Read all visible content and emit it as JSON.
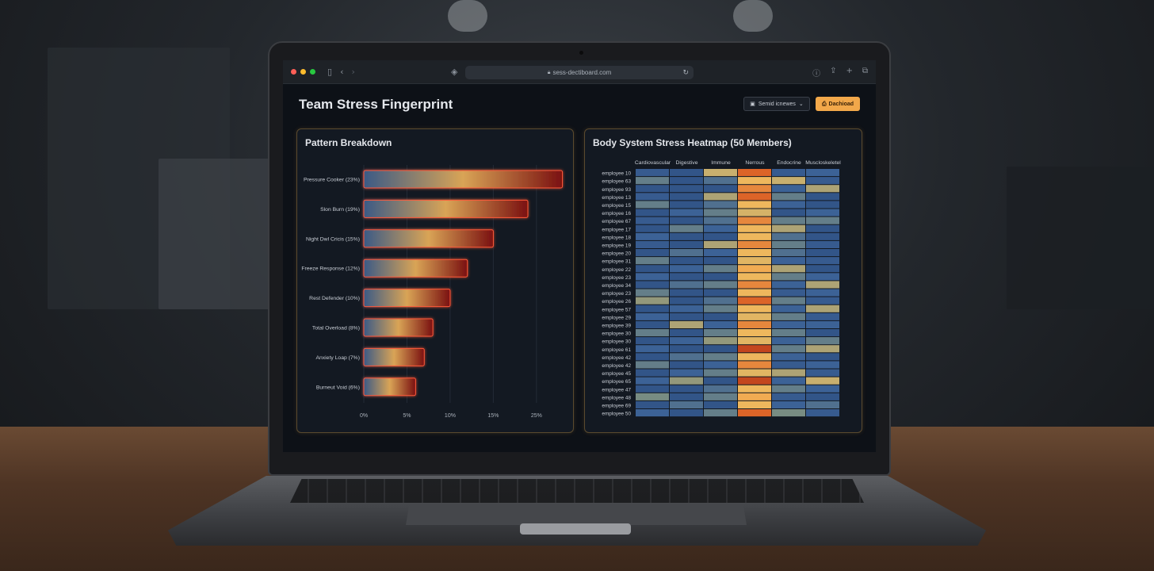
{
  "browser": {
    "url": "sess-dectiboard.com"
  },
  "header": {
    "title": "Team Stress Fingerprint",
    "select_label": "Semid icnewes",
    "button_label": "Dachioad"
  },
  "pattern_panel": {
    "title": "Pattern Breakdown"
  },
  "heatmap_panel": {
    "title": "Body System Stress Heatmap (50 Members)"
  },
  "chart_data": [
    {
      "type": "bar",
      "orientation": "horizontal",
      "categories": [
        "Pressure Cooker (23%)",
        "Slon Burn (19%)",
        "Night Dwl Cricis (15%)",
        "Freeze Response (12%)",
        "Rest Defender (10%)",
        "Total Overload (8%)",
        "Anxiety Loap (7%)",
        "Burneut Void (6%)"
      ],
      "values": [
        23,
        19,
        15,
        12,
        10,
        8,
        7,
        6
      ],
      "xticks": [
        "0%",
        "5%",
        "10%",
        "15%",
        "25%"
      ],
      "xlim": [
        0,
        23.5
      ]
    },
    {
      "type": "heatmap",
      "columns": [
        "Cardiovascular",
        "Digestive",
        "Immune",
        "Nerrous",
        "Endocrine",
        "Muscloskeletel"
      ],
      "rows": [
        "employee 10",
        "employee 63",
        "employee 93",
        "employee 13",
        "employee 15",
        "employee 16",
        "employee 67",
        "employee 17",
        "employee 18",
        "employee 19",
        "employee 20",
        "employee 31",
        "employee 22",
        "employee 23",
        "employee 34",
        "employee 23",
        "employee 26",
        "employee 57",
        "employee 29",
        "employee 39",
        "employee 30",
        "employee 30",
        "employee 61",
        "employee 42",
        "employee 42",
        "employee 45",
        "employee 65",
        "employee 47",
        "employee 48",
        "employee 69",
        "employee 50"
      ],
      "values": [
        [
          0.25,
          0.2,
          0.6,
          0.9,
          0.25,
          0.3
        ],
        [
          0.4,
          0.2,
          0.35,
          0.75,
          0.6,
          0.25
        ],
        [
          0.2,
          0.2,
          0.2,
          0.85,
          0.3,
          0.55
        ],
        [
          0.25,
          0.2,
          0.55,
          0.9,
          0.4,
          0.2
        ],
        [
          0.4,
          0.2,
          0.35,
          0.75,
          0.3,
          0.2
        ],
        [
          0.2,
          0.3,
          0.4,
          0.65,
          0.2,
          0.3
        ],
        [
          0.25,
          0.2,
          0.35,
          0.85,
          0.4,
          0.4
        ],
        [
          0.2,
          0.4,
          0.3,
          0.75,
          0.55,
          0.2
        ],
        [
          0.3,
          0.2,
          0.2,
          0.75,
          0.35,
          0.2
        ],
        [
          0.25,
          0.2,
          0.55,
          0.85,
          0.4,
          0.25
        ],
        [
          0.2,
          0.35,
          0.3,
          0.75,
          0.35,
          0.2
        ],
        [
          0.4,
          0.2,
          0.2,
          0.7,
          0.3,
          0.25
        ],
        [
          0.2,
          0.3,
          0.4,
          0.8,
          0.55,
          0.2
        ],
        [
          0.3,
          0.2,
          0.2,
          0.75,
          0.4,
          0.3
        ],
        [
          0.2,
          0.35,
          0.4,
          0.85,
          0.3,
          0.55
        ],
        [
          0.4,
          0.2,
          0.2,
          0.75,
          0.25,
          0.3
        ],
        [
          0.5,
          0.2,
          0.35,
          0.9,
          0.4,
          0.25
        ],
        [
          0.2,
          0.3,
          0.4,
          0.75,
          0.3,
          0.55
        ],
        [
          0.3,
          0.2,
          0.2,
          0.7,
          0.4,
          0.25
        ],
        [
          0.2,
          0.55,
          0.3,
          0.85,
          0.3,
          0.3
        ],
        [
          0.4,
          0.2,
          0.4,
          0.75,
          0.4,
          0.2
        ],
        [
          0.2,
          0.3,
          0.5,
          0.7,
          0.3,
          0.4
        ],
        [
          0.3,
          0.2,
          0.2,
          0.95,
          0.4,
          0.55
        ],
        [
          0.2,
          0.35,
          0.4,
          0.75,
          0.3,
          0.2
        ],
        [
          0.4,
          0.2,
          0.3,
          0.85,
          0.25,
          0.3
        ],
        [
          0.2,
          0.3,
          0.4,
          0.7,
          0.55,
          0.25
        ],
        [
          0.3,
          0.5,
          0.2,
          0.95,
          0.3,
          0.6
        ],
        [
          0.2,
          0.2,
          0.35,
          0.75,
          0.4,
          0.3
        ],
        [
          0.45,
          0.2,
          0.4,
          0.8,
          0.25,
          0.2
        ],
        [
          0.2,
          0.35,
          0.2,
          0.75,
          0.3,
          0.35
        ],
        [
          0.3,
          0.2,
          0.4,
          0.9,
          0.45,
          0.25
        ]
      ]
    }
  ],
  "colors": {
    "accent": "#f2a84a",
    "panel_border": "#5a4a2e",
    "bar_start": "#3b5a86",
    "bar_mid": "#d9a456",
    "bar_end": "#7a1010"
  }
}
